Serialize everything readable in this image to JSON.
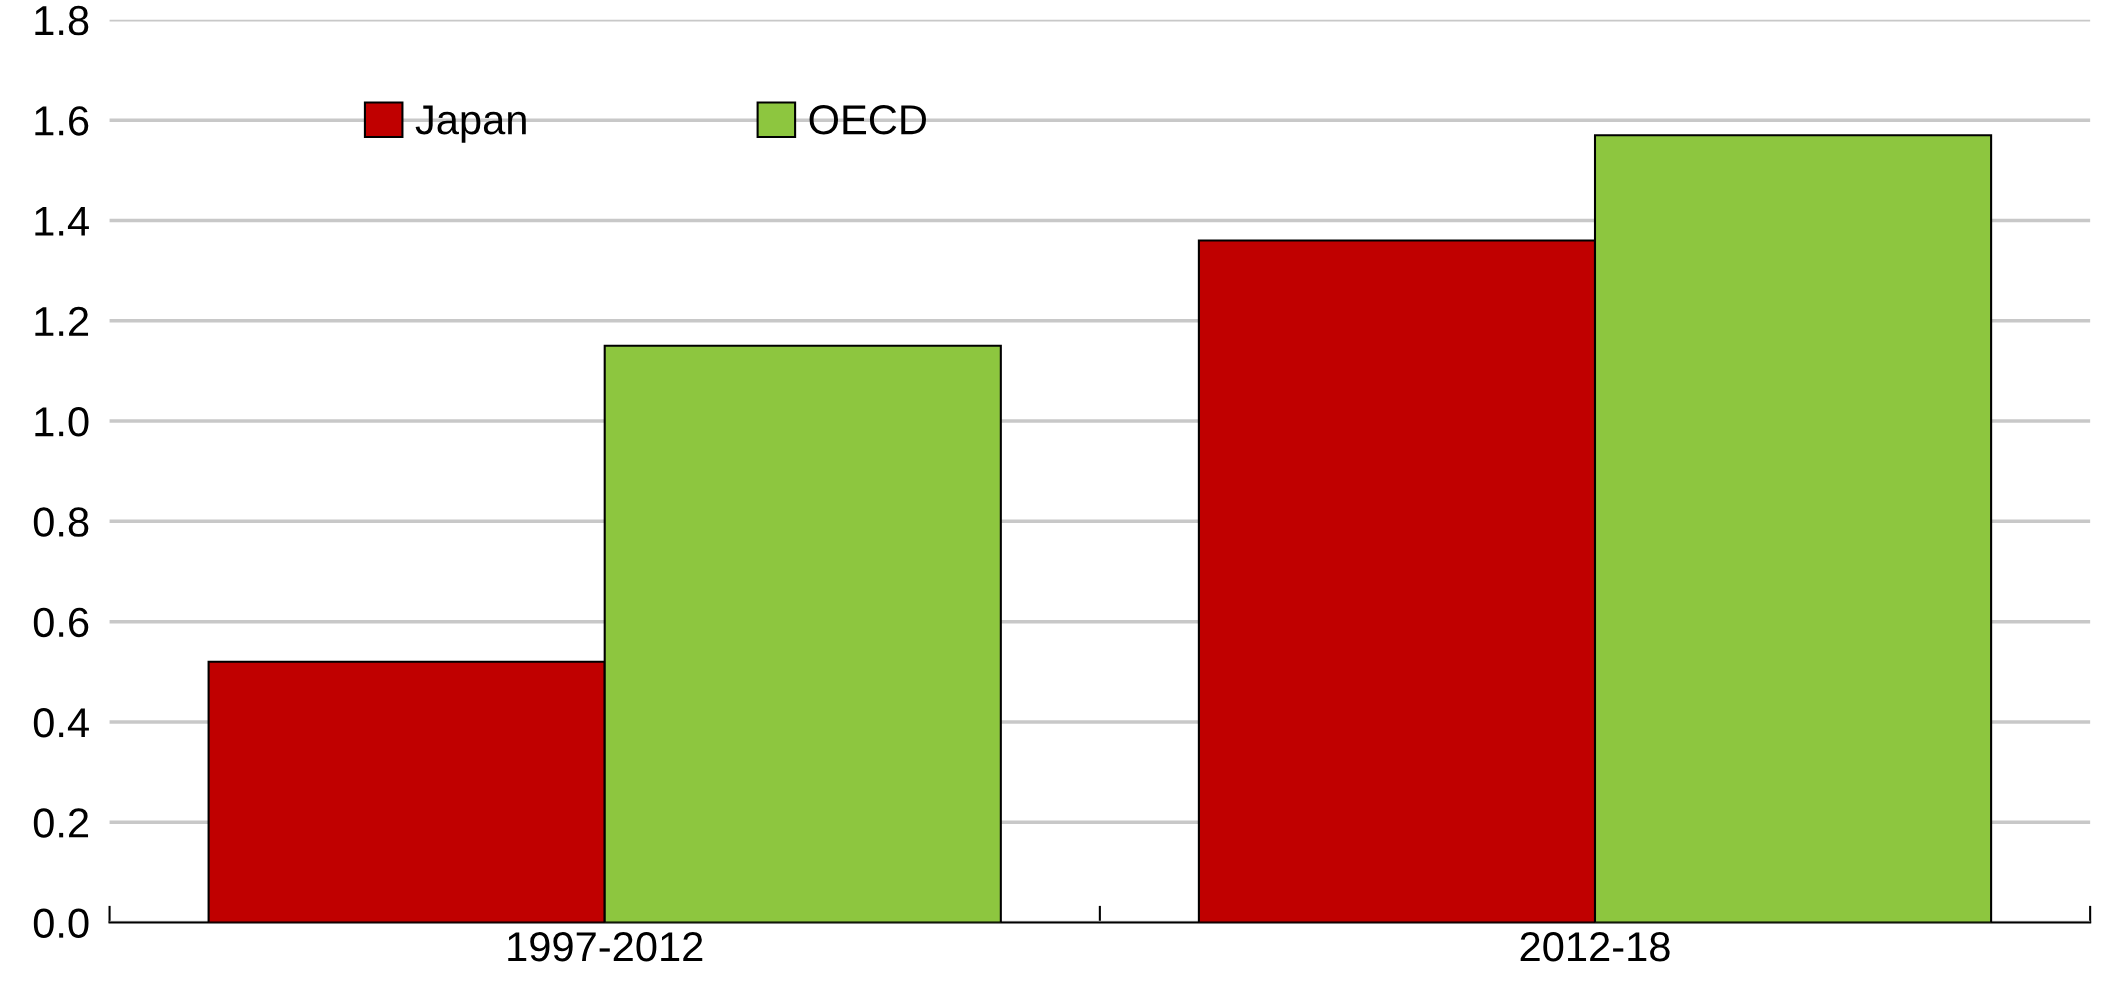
{
  "chart_data": {
    "type": "bar",
    "categories": [
      "1997-2012",
      "2012-18"
    ],
    "series": [
      {
        "name": "Japan",
        "color": "#c00000",
        "values": [
          0.52,
          1.36
        ]
      },
      {
        "name": "OECD",
        "color": "#8dc63f",
        "values": [
          1.15,
          1.57
        ]
      }
    ],
    "ylim": [
      0,
      1.8
    ],
    "yticks": [
      {
        "value": 0,
        "label": "0.0"
      },
      {
        "value": 0.2,
        "label": "0.2"
      },
      {
        "value": 0.4,
        "label": "0.4"
      },
      {
        "value": 0.6,
        "label": "0.6"
      },
      {
        "value": 0.8,
        "label": "0.8"
      },
      {
        "value": 1.0,
        "label": "1.0"
      },
      {
        "value": 1.2,
        "label": "1.2"
      },
      {
        "value": 1.4,
        "label": "1.4"
      },
      {
        "value": 1.6,
        "label": "1.6"
      },
      {
        "value": 1.8,
        "label": "1.8"
      }
    ],
    "grid": "y",
    "legend": "top left"
  }
}
